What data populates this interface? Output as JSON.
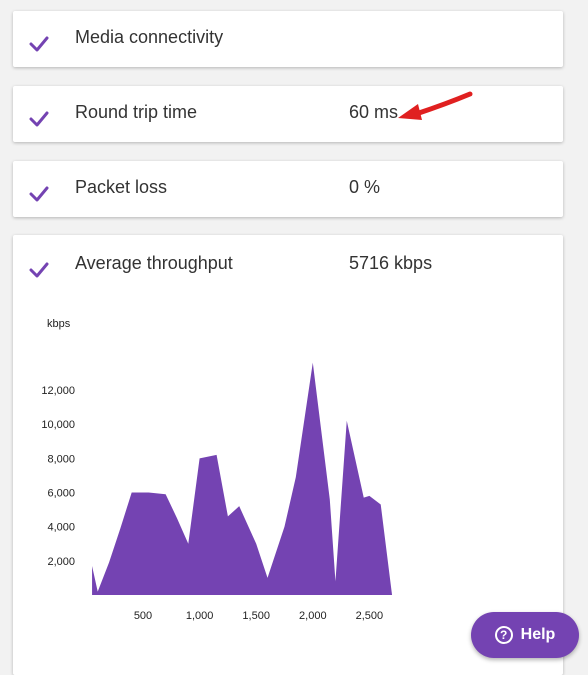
{
  "checks": [
    {
      "label": "Media connectivity",
      "value": "",
      "icon": "check-icon"
    },
    {
      "label": "Round trip time",
      "value": "60 ms",
      "icon": "check-icon"
    },
    {
      "label": "Packet loss",
      "value": "0 %",
      "icon": "check-icon"
    },
    {
      "label": "Average throughput",
      "value": "5716 kbps",
      "icon": "check-icon"
    }
  ],
  "accent_color": "#7443b2",
  "annotation_color": "#e02020",
  "help": {
    "label": "Help",
    "icon": "question-circle-icon"
  },
  "chart_data": {
    "type": "area",
    "ylabel": "kbps",
    "x": [
      50,
      100,
      200,
      300,
      400,
      550,
      700,
      800,
      900,
      1000,
      1150,
      1250,
      1350,
      1500,
      1600,
      1750,
      1850,
      2000,
      2150,
      2200,
      2300,
      2450,
      2500,
      2600,
      2700,
      2800,
      2850
    ],
    "y": [
      1700,
      200,
      1900,
      3900,
      6000,
      6000,
      5900,
      4500,
      3000,
      8000,
      8200,
      4600,
      5200,
      3000,
      1000,
      4000,
      6900,
      13600,
      5600,
      800,
      10200,
      5700,
      5800,
      5300,
      0,
      0,
      0
    ],
    "xticks": [
      500,
      1000,
      1500,
      2000,
      2500
    ],
    "xtick_labels": [
      "500",
      "1,000",
      "1,500",
      "2,000",
      "2,500"
    ],
    "yticks": [
      2000,
      4000,
      6000,
      8000,
      10000,
      12000
    ],
    "ytick_labels": [
      "2,000",
      "4,000",
      "6,000",
      "8,000",
      "10,000",
      "12,000"
    ],
    "xlim": [
      0,
      2900
    ],
    "ylim": [
      0,
      14000
    ],
    "grid": false
  }
}
